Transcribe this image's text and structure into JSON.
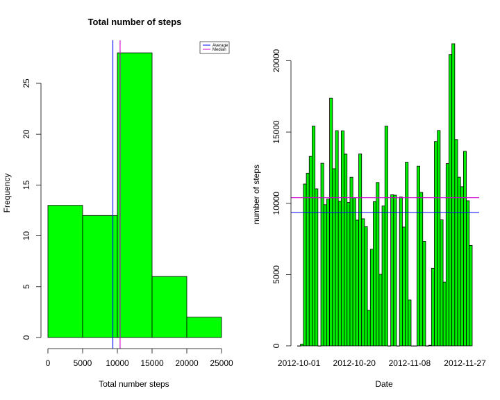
{
  "chart_data": [
    {
      "type": "bar",
      "subtype": "histogram",
      "title": "Total number of steps",
      "xlabel": "Total number steps",
      "ylabel": "Frequency",
      "bins": [
        [
          0,
          5000
        ],
        [
          5000,
          10000
        ],
        [
          10000,
          15000
        ],
        [
          15000,
          20000
        ],
        [
          20000,
          25000
        ]
      ],
      "values": [
        13,
        12,
        28,
        6,
        2
      ],
      "xlim": [
        0,
        25000
      ],
      "ylim": [
        0,
        28
      ],
      "xticks": [
        "0",
        "5000",
        "10000",
        "15000",
        "20000",
        "25000"
      ],
      "yticks": [
        "0",
        "5",
        "10",
        "15",
        "20",
        "25"
      ],
      "bar_color": "#00ff00",
      "reference_lines": [
        {
          "name": "Average",
          "value": 9354,
          "color": "#0000ff"
        },
        {
          "name": "Median",
          "value": 10395,
          "color": "#cc00cc"
        }
      ],
      "legend": {
        "position": "top-right",
        "entries": [
          "Average",
          "Median"
        ]
      }
    },
    {
      "type": "bar",
      "title": "",
      "xlabel": "Date",
      "ylabel": "number of steps",
      "x_start": "2012-10-01",
      "values": [
        0,
        126,
        11352,
        12116,
        13294,
        15420,
        11015,
        0,
        12811,
        9900,
        10304,
        17382,
        12426,
        15098,
        10139,
        15084,
        13452,
        10056,
        11829,
        10395,
        8821,
        13460,
        8918,
        8355,
        2492,
        6778,
        10119,
        11458,
        5018,
        9819,
        15414,
        0,
        10600,
        10571,
        0,
        10439,
        8334,
        12883,
        3219,
        0,
        0,
        12608,
        10765,
        7336,
        0,
        41,
        5441,
        14339,
        15110,
        8841,
        4472,
        12787,
        20427,
        21194,
        14478,
        11834,
        11162,
        13646,
        10183,
        7047
      ],
      "xticks": [
        "2012-10-01",
        "2012-10-20",
        "2012-11-08",
        "2012-11-27"
      ],
      "yticks": [
        "0",
        "5000",
        "10000",
        "15000",
        "20000"
      ],
      "ylim": [
        0,
        21194
      ],
      "bar_color": "#00ee00",
      "reference_lines": [
        {
          "name": "Average",
          "value": 9354,
          "color": "#0000ff"
        },
        {
          "name": "Median",
          "value": 10395,
          "color": "#cc00cc"
        }
      ]
    }
  ]
}
